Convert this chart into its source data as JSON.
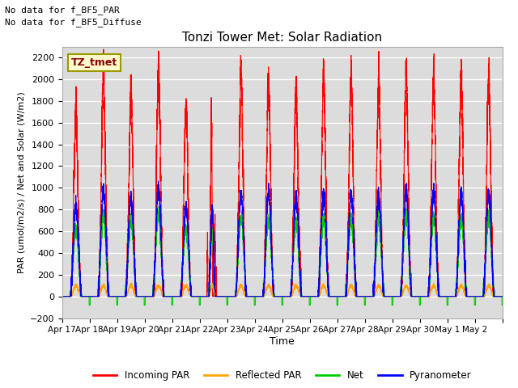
{
  "title": "Tonzi Tower Met: Solar Radiation",
  "ylabel": "PAR (umol/m2/s) / Net and Solar (W/m2)",
  "xlabel": "Time",
  "ylim": [
    -200,
    2300
  ],
  "xlim": [
    0,
    16
  ],
  "background_color": "#dcdcdc",
  "annotation1": "No data for f_BF5_PAR",
  "annotation2": "No data for f_BF5_Diffuse",
  "box_label": "TZ_tmet",
  "xtick_labels": [
    "Apr 17",
    "Apr 18",
    "Apr 19",
    "Apr 20",
    "Apr 21",
    "Apr 22",
    "Apr 23",
    "Apr 24",
    "Apr 25",
    "Apr 26",
    "Apr 27",
    "Apr 28",
    "Apr 29",
    "Apr 30",
    "May 1",
    "May 2"
  ],
  "legend_items": [
    "Incoming PAR",
    "Reflected PAR",
    "Net",
    "Pyranometer"
  ],
  "incoming_peaks": [
    1800,
    2150,
    1950,
    2150,
    1800,
    2050,
    2100,
    2050,
    1950,
    2100,
    2100,
    2050,
    2150,
    2100,
    2100,
    2100
  ],
  "pyranometer_peaks": [
    820,
    980,
    900,
    980,
    820,
    950,
    950,
    950,
    900,
    940,
    930,
    920,
    960,
    950,
    950,
    950
  ],
  "net_peaks": [
    620,
    750,
    690,
    750,
    620,
    710,
    720,
    710,
    680,
    710,
    700,
    700,
    730,
    720,
    720,
    720
  ],
  "reflected_peaks": [
    100,
    100,
    100,
    100,
    100,
    100,
    100,
    100,
    100,
    100,
    100,
    100,
    100,
    100,
    100,
    100
  ],
  "net_night": -80,
  "n_days": 16
}
